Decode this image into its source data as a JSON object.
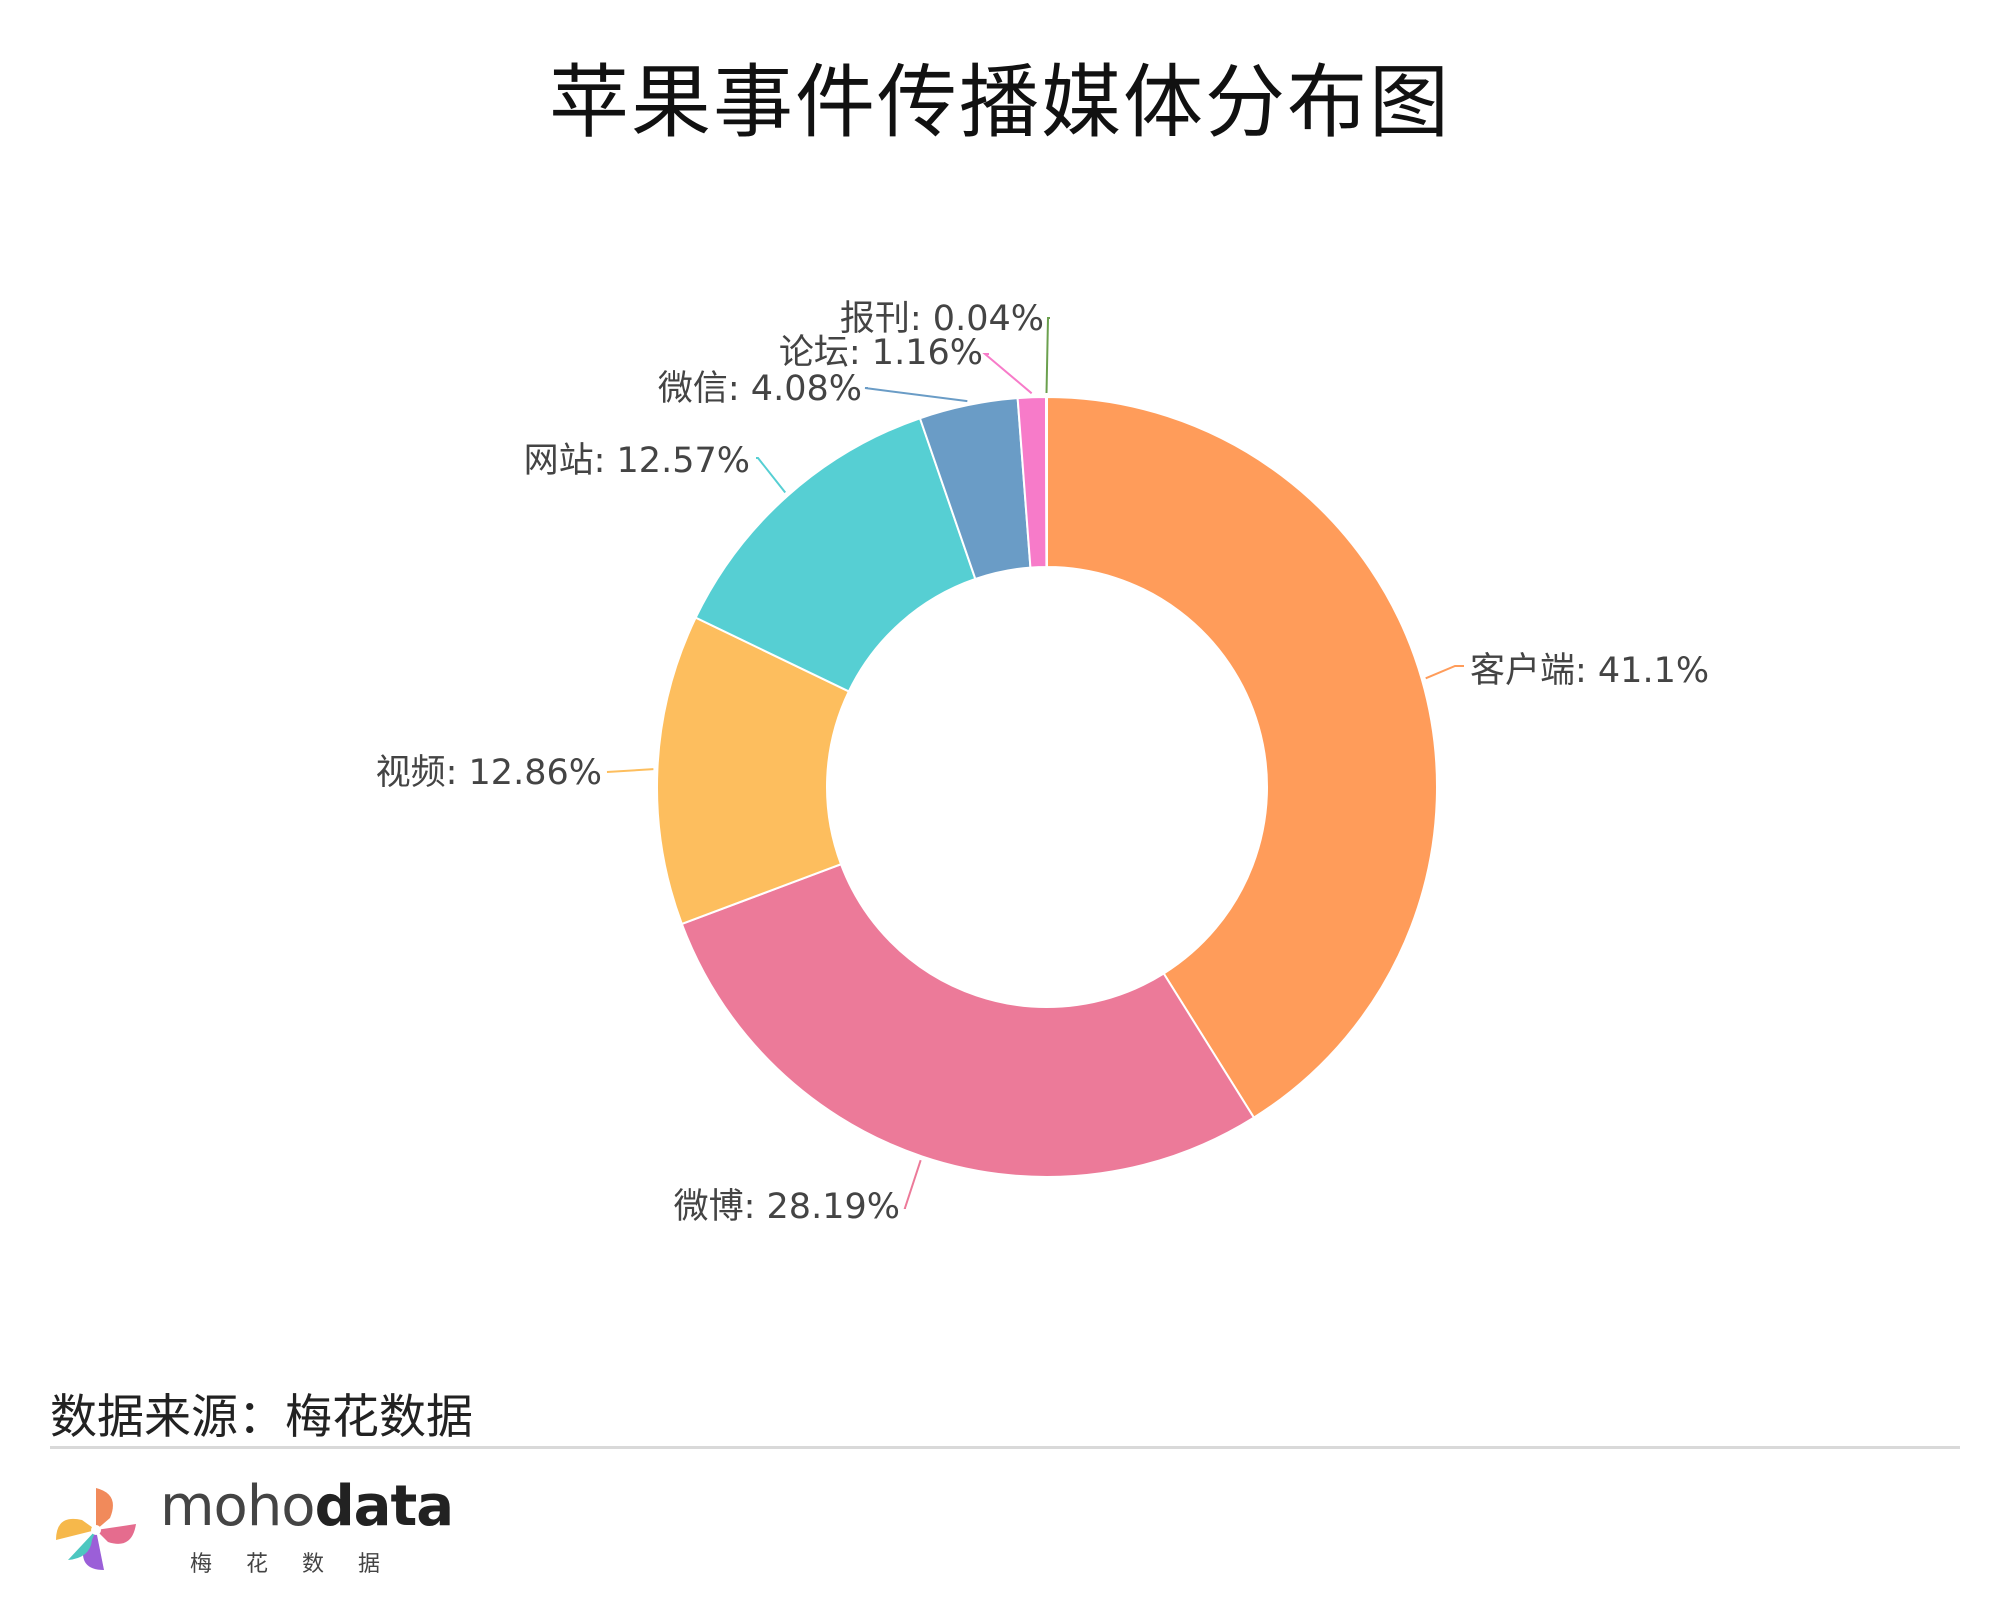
{
  "chart_data": {
    "type": "pie",
    "style": "donut",
    "title": "苹果事件传播媒体分布图",
    "slices": [
      {
        "label": "客户端",
        "value": 41.1,
        "display": "客户端: 41.1%",
        "color": "#FF9C5A"
      },
      {
        "label": "微博",
        "value": 28.19,
        "display": "微博: 28.19%",
        "color": "#EC7A99"
      },
      {
        "label": "视频",
        "value": 12.86,
        "display": "视频: 12.86%",
        "color": "#FDBE5E"
      },
      {
        "label": "网站",
        "value": 12.57,
        "display": "网站: 12.57%",
        "color": "#56CFD3"
      },
      {
        "label": "微信",
        "value": 4.08,
        "display": "微信: 4.08%",
        "color": "#6A9CC6"
      },
      {
        "label": "论坛",
        "value": 1.16,
        "display": "论坛: 1.16%",
        "color": "#F77BC9"
      },
      {
        "label": "报刊",
        "value": 0.04,
        "display": "报刊: 0.04%",
        "color": "#6BA04E"
      }
    ]
  },
  "footer": {
    "source": "数据来源：梅花数据",
    "brand_light": "moho",
    "brand_bold": "data",
    "brand_sub": "梅花数据"
  }
}
